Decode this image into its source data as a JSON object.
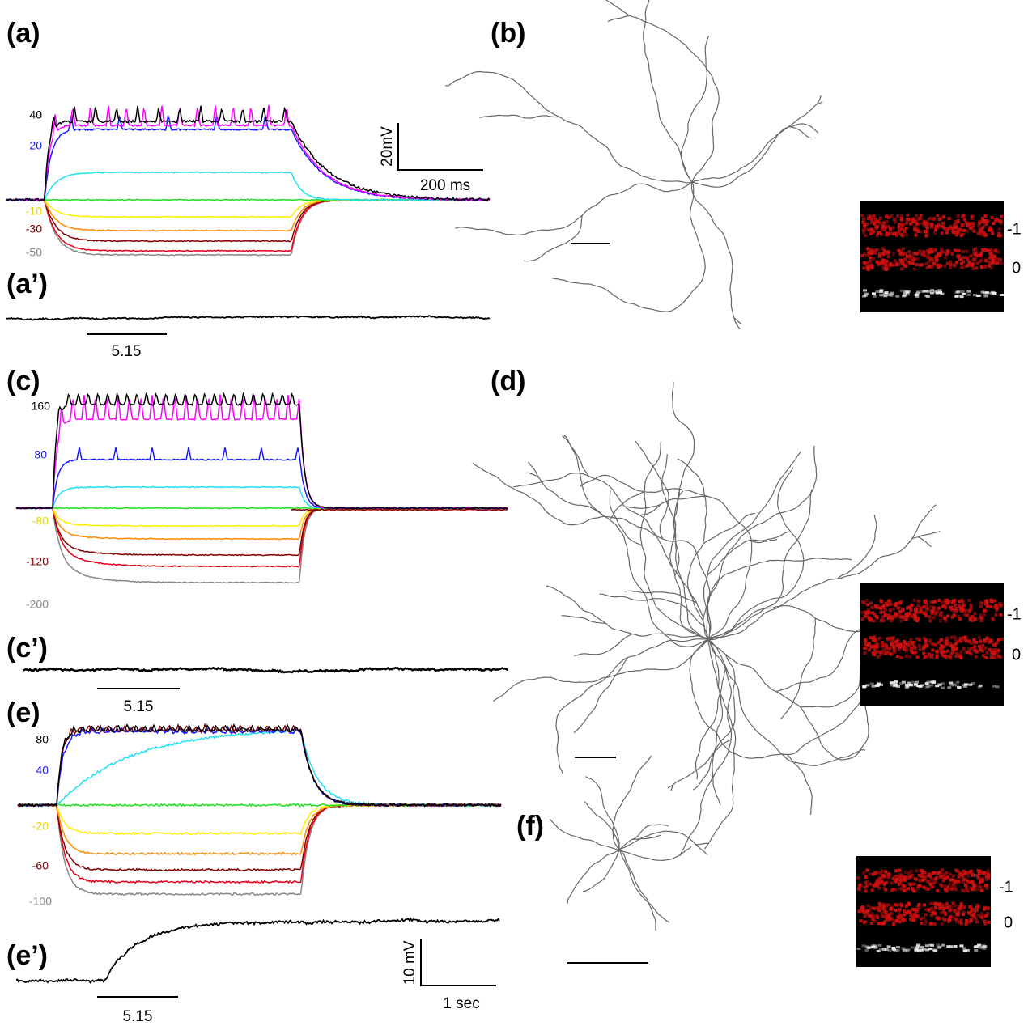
{
  "panels": {
    "a": {
      "label": "(a)",
      "trace_labels": [
        "40",
        "20",
        "-10",
        "-30",
        "-50"
      ],
      "scale_y": "20mV",
      "scale_x": "200 ms"
    },
    "a_prime": {
      "label": "(a’)",
      "scale": "5.15"
    },
    "b": {
      "label": "(b)",
      "inset_labels": [
        "-1",
        "0"
      ]
    },
    "c": {
      "label": "(c)",
      "trace_labels": [
        "160",
        "80",
        "-80",
        "-120",
        "-200"
      ]
    },
    "c_prime": {
      "label": "(c’)",
      "scale": "5.15"
    },
    "d": {
      "label": "(d)",
      "inset_labels": [
        "-1",
        "0"
      ]
    },
    "e": {
      "label": "(e)",
      "trace_labels": [
        "80",
        "40",
        "-20",
        "-60",
        "-100"
      ]
    },
    "e_prime": {
      "label": "(e’)",
      "scale": "5.15",
      "scale_y": "10 mV",
      "scale_x": "1 sec"
    },
    "f": {
      "label": "(f)",
      "inset_labels": [
        "-1",
        "0"
      ]
    }
  }
}
